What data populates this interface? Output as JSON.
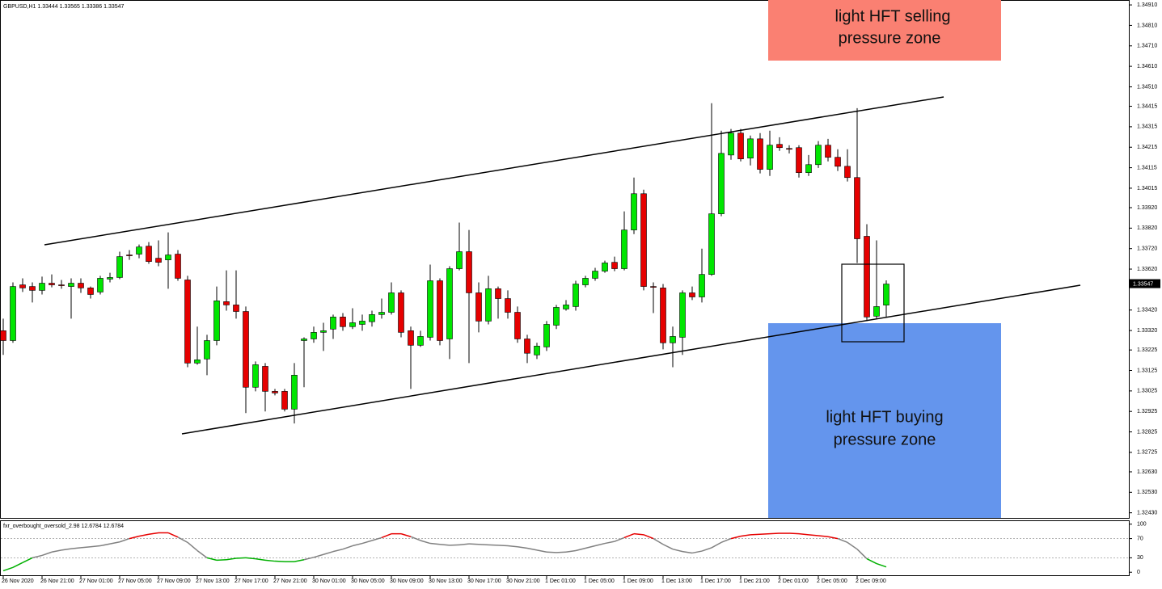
{
  "chart_data": [
    {
      "type": "candlestick",
      "title": "GBPUSD,H1  1.33444 1.33565 1.33386 1.33547",
      "categories": [
        "26 Nov 2020",
        null,
        null,
        null,
        "26 Nov 21:00",
        null,
        null,
        null,
        "27 Nov 01:00",
        null,
        null,
        null,
        "27 Nov 05:00",
        null,
        null,
        null,
        "27 Nov 09:00",
        null,
        null,
        null,
        "27 Nov 13:00",
        null,
        null,
        null,
        "27 Nov 17:00",
        null,
        null,
        null,
        "27 Nov 21:00",
        null,
        null,
        null,
        "30 Nov 01:00",
        null,
        null,
        null,
        "30 Nov 05:00",
        null,
        null,
        null,
        "30 Nov 09:00",
        null,
        null,
        null,
        "30 Nov 13:00",
        null,
        null,
        null,
        "30 Nov 17:00",
        null,
        null,
        null,
        "30 Nov 21:00",
        null,
        null,
        null,
        "1 Dec 01:00",
        null,
        null,
        null,
        "1 Dec 05:00",
        null,
        null,
        null,
        "1 Dec 09:00",
        null,
        null,
        null,
        "1 Dec 13:00",
        null,
        null,
        null,
        "1 Dec 17:00",
        null,
        null,
        null,
        "1 Dec 21:00",
        null,
        null,
        null,
        "2 Dec 01:00",
        null,
        null,
        null,
        "2 Dec 05:00",
        null,
        null,
        null,
        "2 Dec 09:00",
        null,
        null,
        null
      ],
      "open": [
        1.33319,
        1.33271,
        1.33543,
        1.33535,
        1.33516,
        1.33551,
        1.33543,
        1.33535,
        1.33551,
        1.33528,
        1.33508,
        1.33571,
        1.33579,
        1.33689,
        1.33693,
        1.33732,
        1.33673,
        1.33665,
        1.33693,
        1.33567,
        1.33161,
        1.33181,
        1.33271,
        1.33461,
        1.33445,
        1.33413,
        1.33043,
        1.33145,
        1.33023,
        1.33023,
        1.32936,
        1.33271,
        1.33279,
        1.33311,
        1.33327,
        1.33386,
        1.33339,
        1.3335,
        1.33363,
        1.33398,
        1.33409,
        1.33504,
        1.33319,
        1.33248,
        1.33287,
        1.33563,
        1.33279,
        1.33622,
        1.33705,
        1.33504,
        1.33366,
        1.33524,
        1.33476,
        1.33409,
        1.33279,
        1.33201,
        1.3324,
        1.33346,
        1.33425,
        1.33437,
        1.33543,
        1.33575,
        1.3361,
        1.33653,
        1.33622,
        1.33811,
        1.33988,
        1.33535,
        1.33528,
        1.3326,
        1.33287,
        1.33504,
        1.33484,
        1.33594,
        1.3389,
        1.34177,
        1.34284,
        1.34162,
        1.34256,
        1.34107,
        1.34229,
        1.34209,
        1.34213,
        1.34091,
        1.3413,
        1.34225,
        1.34166,
        1.34122,
        1.34067,
        1.3378,
        1.3339,
        1.33444
      ],
      "high": [
        1.33378,
        1.33555,
        1.33575,
        1.33555,
        1.33583,
        1.33594,
        1.33567,
        1.33575,
        1.33575,
        1.33535,
        1.33587,
        1.33602,
        1.33705,
        1.33713,
        1.3374,
        1.33752,
        1.3376,
        1.33799,
        1.33713,
        1.33587,
        1.33339,
        1.33299,
        1.33535,
        1.33614,
        1.33614,
        1.33437,
        1.33169,
        1.33161,
        1.33035,
        1.33035,
        1.33161,
        1.33287,
        1.33339,
        1.33358,
        1.33398,
        1.33405,
        1.33429,
        1.33398,
        1.33417,
        1.33476,
        1.33555,
        1.33516,
        1.33339,
        1.33319,
        1.33642,
        1.33575,
        1.33634,
        1.33847,
        1.33811,
        1.33555,
        1.33587,
        1.33535,
        1.33516,
        1.33437,
        1.33299,
        1.3326,
        1.33366,
        1.33445,
        1.33469,
        1.33563,
        1.33587,
        1.33626,
        1.33661,
        1.33681,
        1.33902,
        1.34067,
        1.34008,
        1.33555,
        1.33547,
        1.33339,
        1.33516,
        1.33535,
        1.3372,
        1.3443,
        1.34296,
        1.34304,
        1.34304,
        1.34272,
        1.34284,
        1.34296,
        1.34264,
        1.34225,
        1.34225,
        1.34177,
        1.34245,
        1.34256,
        1.34205,
        1.34205,
        1.34406,
        1.33839,
        1.3376,
        1.33565
      ],
      "low": [
        1.33201,
        1.3326,
        1.33508,
        1.33457,
        1.33496,
        1.33531,
        1.33524,
        1.33378,
        1.33504,
        1.33476,
        1.33496,
        1.33555,
        1.33571,
        1.33665,
        1.33673,
        1.33646,
        1.33634,
        1.33524,
        1.33563,
        1.33141,
        1.33153,
        1.33102,
        1.33248,
        1.33417,
        1.33378,
        1.32917,
        1.33023,
        1.32925,
        1.33003,
        1.32925,
        1.32866,
        1.33043,
        1.3326,
        1.3322,
        1.33279,
        1.33319,
        1.33327,
        1.33319,
        1.33339,
        1.33378,
        1.33398,
        1.33287,
        1.33035,
        1.3324,
        1.33271,
        1.33248,
        1.33181,
        1.33614,
        1.33161,
        1.33311,
        1.3335,
        1.33378,
        1.33378,
        1.3326,
        1.33161,
        1.33181,
        1.3322,
        1.33327,
        1.33417,
        1.33417,
        1.33531,
        1.33563,
        1.33602,
        1.3361,
        1.33614,
        1.33791,
        1.33516,
        1.33405,
        1.33228,
        1.33141,
        1.33201,
        1.33469,
        1.33457,
        1.33587,
        1.33878,
        1.34154,
        1.34146,
        1.34126,
        1.34087,
        1.34075,
        1.34197,
        1.34185,
        1.34067,
        1.34075,
        1.34114,
        1.34146,
        1.34099,
        1.34048,
        1.3365,
        1.33366,
        1.33378,
        1.33386
      ],
      "close": [
        1.33271,
        1.33535,
        1.33528,
        1.33516,
        1.33551,
        1.33543,
        1.33539,
        1.33551,
        1.33528,
        1.33496,
        1.33575,
        1.33579,
        1.33681,
        1.33685,
        1.33728,
        1.33657,
        1.33653,
        1.33689,
        1.33575,
        1.33161,
        1.33177,
        1.33271,
        1.33465,
        1.33445,
        1.33413,
        1.33043,
        1.33153,
        1.33023,
        1.33015,
        1.32936,
        1.33102,
        1.33279,
        1.33311,
        1.33319,
        1.33386,
        1.33339,
        1.33358,
        1.33366,
        1.33398,
        1.33409,
        1.33504,
        1.33311,
        1.33248,
        1.33291,
        1.33563,
        1.33271,
        1.33622,
        1.33705,
        1.33504,
        1.33366,
        1.33524,
        1.33476,
        1.33409,
        1.33279,
        1.33209,
        1.33244,
        1.3335,
        1.33433,
        1.33445,
        1.33547,
        1.33575,
        1.3361,
        1.3365,
        1.33622,
        1.33811,
        1.33988,
        1.33535,
        1.33531,
        1.3326,
        1.33291,
        1.33504,
        1.33484,
        1.33594,
        1.3389,
        1.34185,
        1.34284,
        1.34158,
        1.34256,
        1.34107,
        1.34225,
        1.34213,
        1.34205,
        1.34091,
        1.3413,
        1.34225,
        1.34166,
        1.34122,
        1.34067,
        1.33768,
        1.33386,
        1.33437,
        1.33547
      ],
      "up_color": "#00e600",
      "down_color": "#e60000",
      "ylim": [
        1.32405,
        1.34934
      ],
      "yticks": [
        {
          "value": 1.3491,
          "label": "1.34910"
        },
        {
          "value": 1.3481,
          "label": "1.34810"
        },
        {
          "value": 1.3471,
          "label": "1.34710"
        },
        {
          "value": 1.3461,
          "label": "1.34610"
        },
        {
          "value": 1.3451,
          "label": "1.34510"
        },
        {
          "value": 1.34415,
          "label": "1.34415"
        },
        {
          "value": 1.34315,
          "label": "1.34315"
        },
        {
          "value": 1.34215,
          "label": "1.34215"
        },
        {
          "value": 1.34115,
          "label": "1.34115"
        },
        {
          "value": 1.34015,
          "label": "1.34015"
        },
        {
          "value": 1.3392,
          "label": "1.33920"
        },
        {
          "value": 1.3382,
          "label": "1.33820"
        },
        {
          "value": 1.3372,
          "label": "1.33720"
        },
        {
          "value": 1.3362,
          "label": "1.33620"
        },
        {
          "value": 1.3342,
          "label": "1.33420"
        },
        {
          "value": 1.3332,
          "label": "1.33320"
        },
        {
          "value": 1.33225,
          "label": "1.33225"
        },
        {
          "value": 1.33125,
          "label": "1.33125"
        },
        {
          "value": 1.33025,
          "label": "1.33025"
        },
        {
          "value": 1.32925,
          "label": "1.32925"
        },
        {
          "value": 1.32825,
          "label": "1.32825"
        },
        {
          "value": 1.32725,
          "label": "1.32725"
        },
        {
          "value": 1.3263,
          "label": "1.32630"
        },
        {
          "value": 1.3253,
          "label": "1.32530"
        },
        {
          "value": 1.3243,
          "label": "1.32430"
        }
      ],
      "last_price": {
        "value": 1.33547,
        "label": "1.33547"
      },
      "annotations": [
        {
          "lines": [
            "light HFT selling",
            "pressure zone"
          ],
          "color": "#fa8072"
        },
        {
          "lines": [
            "light HFT buying",
            "pressure zone"
          ],
          "color": "#6495ed"
        }
      ]
    },
    {
      "type": "line",
      "title": "fxr_overbought_oversold_2.98 12.6784 12.6784",
      "values": [
        3,
        10,
        20,
        30,
        35,
        42,
        46,
        49,
        51,
        53,
        55,
        59,
        63,
        70,
        75,
        79,
        82,
        82,
        73,
        62,
        45,
        30,
        25,
        26,
        29,
        30,
        28,
        25,
        23,
        22,
        22,
        26,
        31,
        37,
        43,
        48,
        55,
        60,
        66,
        72,
        80,
        80,
        74,
        66,
        60,
        58,
        56,
        57,
        59,
        58,
        57,
        56,
        55,
        53,
        50,
        46,
        42,
        41,
        42,
        45,
        50,
        55,
        60,
        64,
        72,
        80,
        78,
        70,
        58,
        48,
        43,
        40,
        44,
        51,
        62,
        70,
        75,
        78,
        79,
        80,
        81,
        81,
        80,
        78,
        76,
        74,
        70,
        62,
        48,
        28,
        18,
        11
      ],
      "color": "#808080",
      "overbought_color": "#e60000",
      "oversold_color": "#00b000",
      "levels": [
        30,
        70
      ],
      "ylim": [
        -8,
        108
      ],
      "yticks": [
        100,
        70,
        30,
        0
      ]
    }
  ]
}
